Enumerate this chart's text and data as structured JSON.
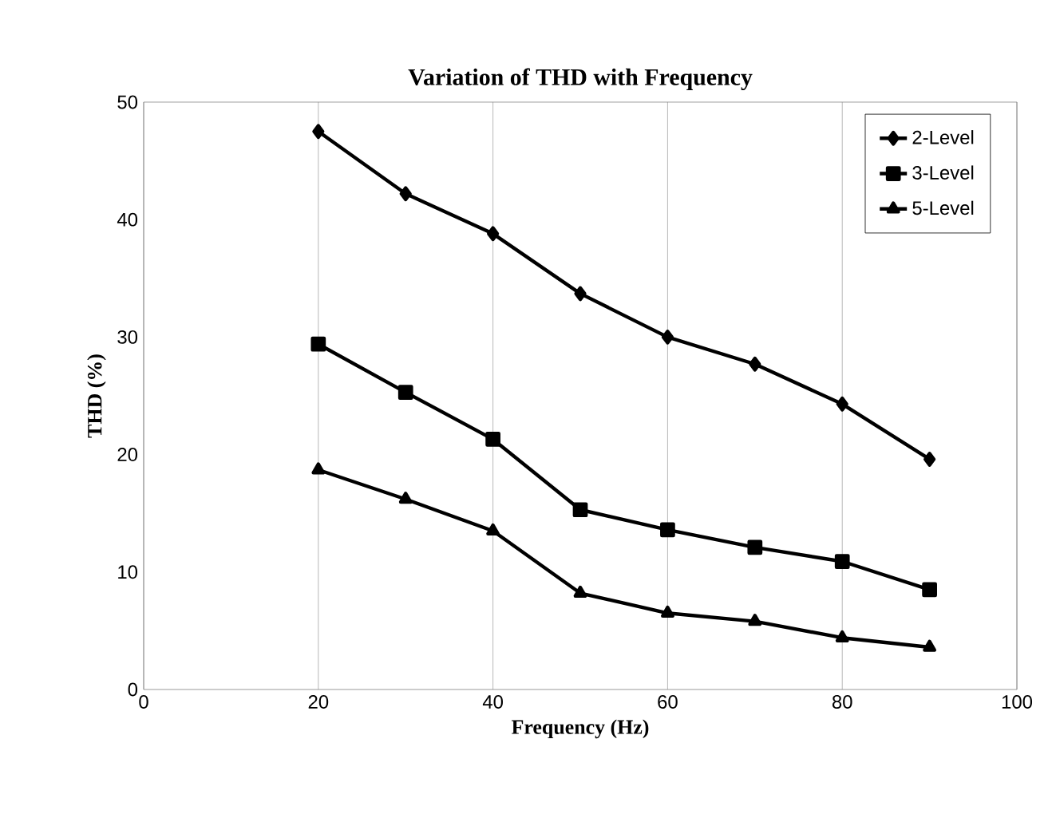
{
  "chart_data": {
    "type": "line",
    "title": "Variation of THD with Frequency",
    "xlabel": "Frequency (Hz)",
    "ylabel": "THD (%)",
    "x": [
      20,
      30,
      40,
      50,
      60,
      70,
      80,
      90
    ],
    "series": [
      {
        "name": "2-Level",
        "color": "#000000",
        "marker": "diamond",
        "values": [
          47.5,
          42.2,
          38.8,
          33.7,
          30.0,
          27.7,
          24.3,
          19.6
        ]
      },
      {
        "name": "3-Level",
        "color": "#000000",
        "marker": "square",
        "values": [
          29.4,
          25.3,
          21.3,
          15.3,
          13.6,
          12.1,
          10.9,
          8.5
        ]
      },
      {
        "name": "5-Level",
        "color": "#000000",
        "marker": "triangle",
        "values": [
          18.7,
          16.2,
          13.5,
          8.2,
          6.5,
          5.8,
          4.4,
          3.6
        ]
      }
    ],
    "xlim": [
      0,
      100
    ],
    "xticks": [
      0,
      20,
      40,
      60,
      80,
      100
    ],
    "ylim": [
      0,
      50
    ],
    "yticks": [
      0,
      10,
      20,
      30,
      40,
      50
    ],
    "grid": "x",
    "legend": "top right",
    "line_style": "solid"
  }
}
